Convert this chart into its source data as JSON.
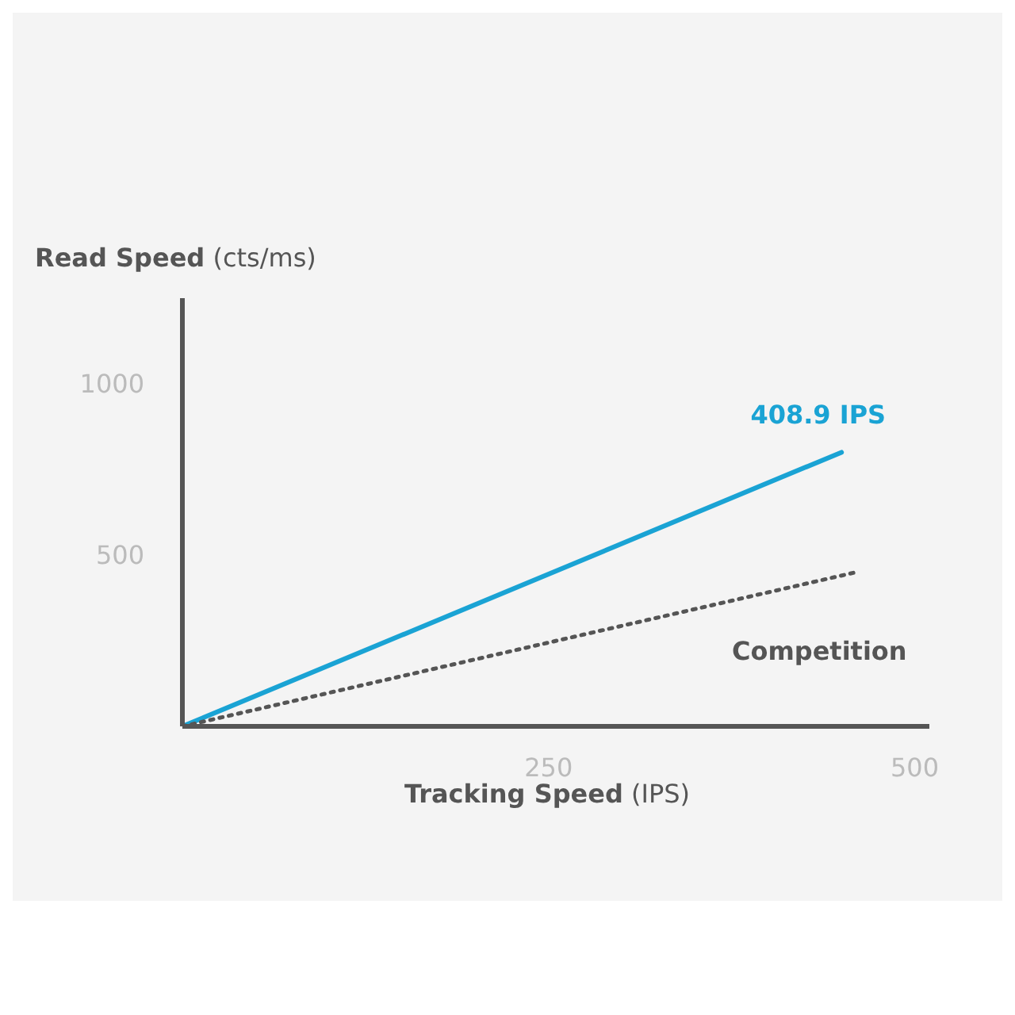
{
  "chart_data": {
    "type": "line",
    "xlabel": "Tracking Speed (IPS)",
    "ylabel": "Read Speed (cts/ms)",
    "xlim": [
      0,
      510
    ],
    "xticks": [
      250,
      500
    ],
    "ylim": [
      0,
      1250
    ],
    "yticks": [
      500,
      1000
    ],
    "grid": false,
    "legend": false,
    "marker": "none",
    "series": [
      {
        "name": "408.9 IPS",
        "color": "#1aa3d4",
        "x": [
          0,
          450
        ],
        "values": [
          0,
          800
        ],
        "line_style": "solid"
      },
      {
        "name": "Competition",
        "color": "#555555",
        "x": [
          0,
          460
        ],
        "values": [
          0,
          450
        ],
        "line_style": "dotted"
      }
    ]
  }
}
